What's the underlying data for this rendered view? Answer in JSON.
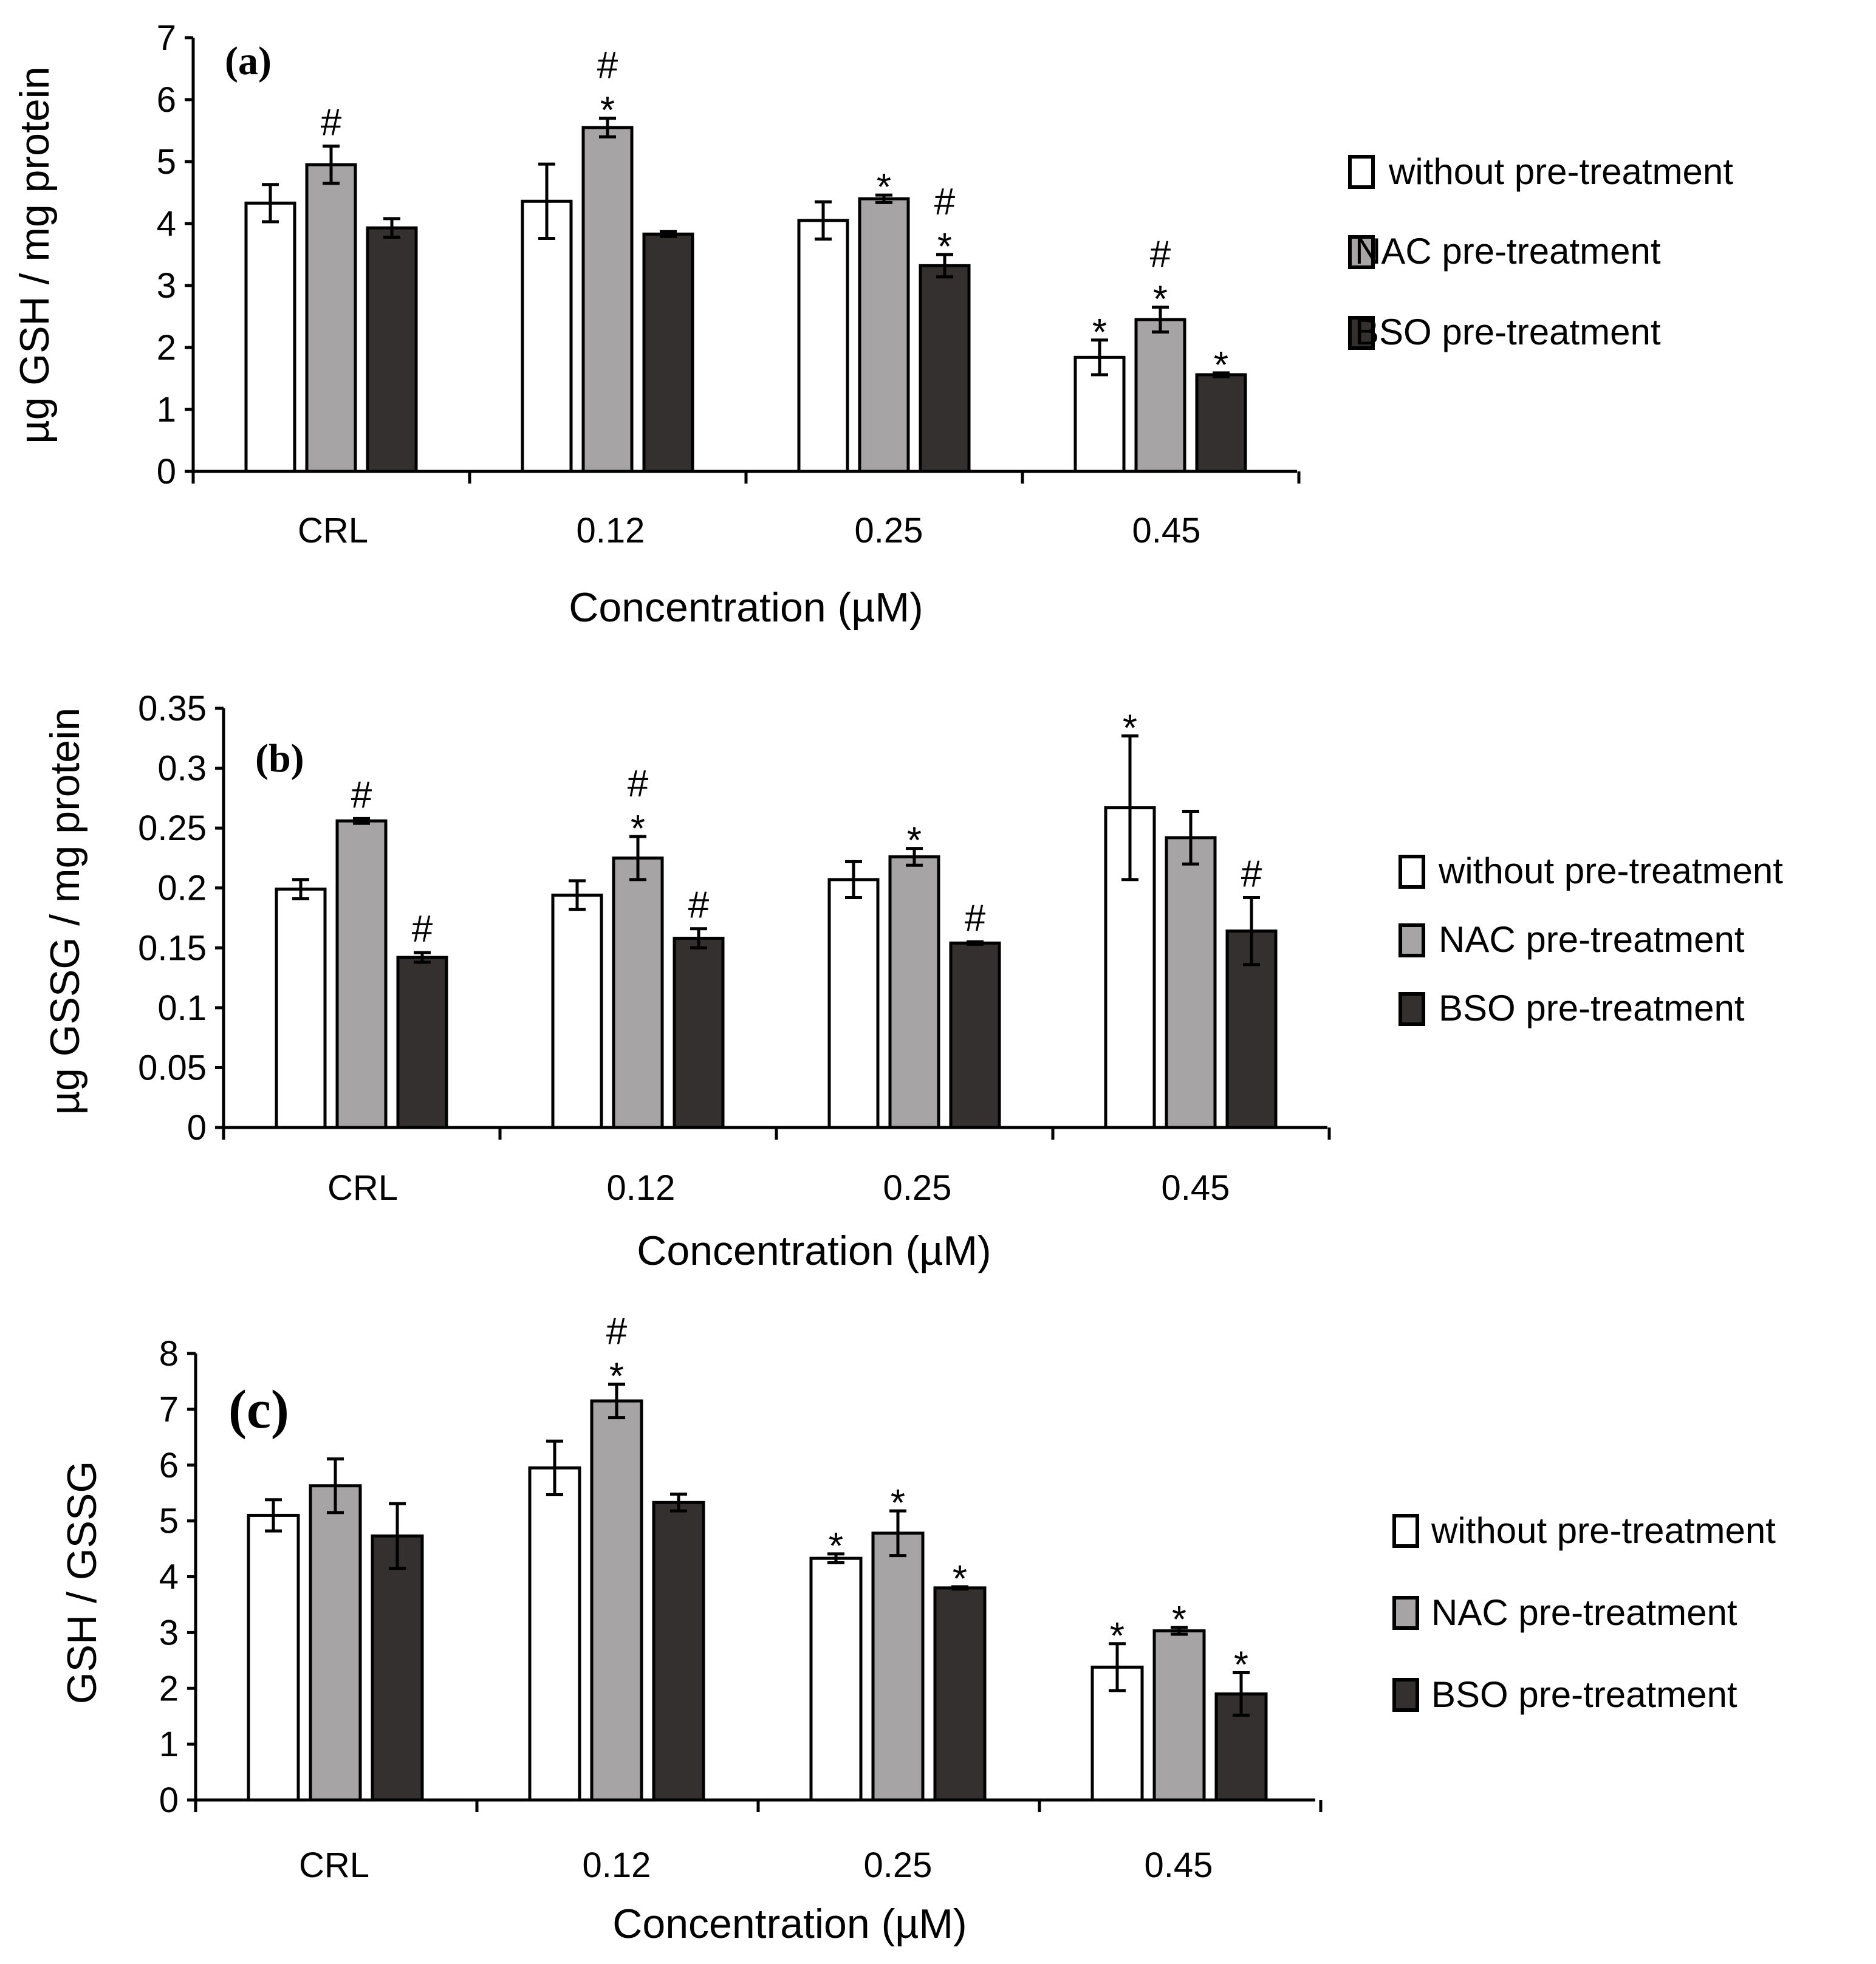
{
  "colors": {
    "without": "#ffffff",
    "nac": "#a6a4a4",
    "bso": "#353030"
  },
  "chart_data": [
    {
      "type": "bar",
      "panel_label": "(a)",
      "ylabel": "µg GSH / mg protein",
      "xlabel": "Concentration (µM)",
      "categories": [
        "CRL",
        "0.12",
        "0.25",
        "0.45"
      ],
      "ylim": [
        0,
        7
      ],
      "yticks": [
        "0",
        "1",
        "2",
        "3",
        "4",
        "5",
        "6",
        "7"
      ],
      "series": [
        {
          "name": "without pre-treatment",
          "values": [
            4.33,
            4.36,
            4.05,
            1.84
          ],
          "errors": [
            0.3,
            0.6,
            0.3,
            0.28
          ],
          "marks": [
            "",
            "",
            "",
            "*"
          ]
        },
        {
          "name": "NAC pre-treatment",
          "values": [
            4.95,
            5.55,
            4.4,
            2.45
          ],
          "errors": [
            0.3,
            0.15,
            0.06,
            0.2
          ],
          "marks": [
            "#",
            "*#",
            "*",
            "*#"
          ]
        },
        {
          "name": "BSO pre-treatment",
          "values": [
            3.93,
            3.83,
            3.32,
            1.56
          ],
          "errors": [
            0.15,
            0.04,
            0.18,
            0.03
          ],
          "marks": [
            "",
            "",
            "*#",
            "*"
          ]
        }
      ],
      "legend": [
        "without pre-treatment",
        "NAC pre-treatment",
        "BSO pre-treatment"
      ]
    },
    {
      "type": "bar",
      "panel_label": "(b)",
      "ylabel": "µg GSSG / mg protein",
      "xlabel": "Concentration (µM)",
      "categories": [
        "CRL",
        "0.12",
        "0.25",
        "0.45"
      ],
      "ylim": [
        0,
        0.35
      ],
      "yticks": [
        "0",
        "0.05",
        "0.1",
        "0.15",
        "0.2",
        "0.25",
        "0.3",
        "0.35"
      ],
      "series": [
        {
          "name": "without pre-treatment",
          "values": [
            0.199,
            0.194,
            0.207,
            0.267
          ],
          "errors": [
            0.008,
            0.012,
            0.015,
            0.06
          ],
          "marks": [
            "",
            "",
            "",
            "*"
          ]
        },
        {
          "name": "NAC pre-treatment",
          "values": [
            0.256,
            0.225,
            0.226,
            0.242
          ],
          "errors": [
            0.002,
            0.018,
            0.007,
            0.022
          ],
          "marks": [
            "#",
            "*#",
            "*",
            ""
          ]
        },
        {
          "name": "BSO pre-treatment",
          "values": [
            0.142,
            0.158,
            0.154,
            0.164
          ],
          "errors": [
            0.004,
            0.008,
            0.001,
            0.028
          ],
          "marks": [
            "#",
            "#",
            "#",
            "#"
          ]
        }
      ],
      "legend": [
        "without pre-treatment",
        "NAC pre-treatment",
        "BSO pre-treatment"
      ]
    },
    {
      "type": "bar",
      "panel_label": "(c)",
      "ylabel": "GSH / GSSG",
      "xlabel": "Concentration (µM)",
      "categories": [
        "CRL",
        "0.12",
        "0.25",
        "0.45"
      ],
      "ylim": [
        0,
        8
      ],
      "yticks": [
        "0",
        "1",
        "2",
        "3",
        "4",
        "5",
        "6",
        "7",
        "8"
      ],
      "series": [
        {
          "name": "without pre-treatment",
          "values": [
            5.1,
            5.95,
            4.33,
            2.38
          ],
          "errors": [
            0.28,
            0.48,
            0.08,
            0.42
          ],
          "marks": [
            "",
            "",
            "*",
            "*"
          ]
        },
        {
          "name": "NAC pre-treatment",
          "values": [
            5.63,
            7.15,
            4.78,
            3.03
          ],
          "errors": [
            0.48,
            0.3,
            0.4,
            0.06
          ],
          "marks": [
            "",
            "*#",
            "*",
            "*"
          ]
        },
        {
          "name": "BSO pre-treatment",
          "values": [
            4.73,
            5.33,
            3.8,
            1.9
          ],
          "errors": [
            0.58,
            0.15,
            0.02,
            0.38
          ],
          "marks": [
            "",
            "",
            "*",
            "*"
          ]
        }
      ],
      "legend": [
        "without pre-treatment",
        "NAC pre-treatment",
        "BSO pre-treatment"
      ]
    }
  ]
}
